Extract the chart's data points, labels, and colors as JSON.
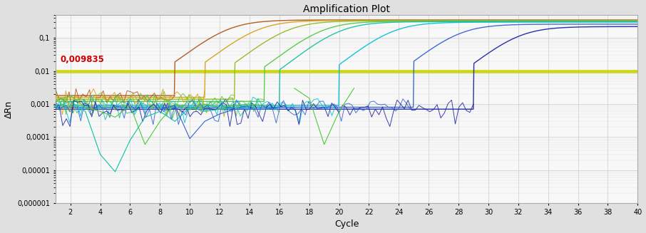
{
  "title": "Amplification Plot",
  "xlabel": "Cycle",
  "ylabel": "ΔRn",
  "threshold": 0.009835,
  "threshold_label": "0,009835",
  "threshold_color": "#c8d400",
  "threshold_lw": 3.5,
  "xlim": [
    1,
    40
  ],
  "ylim": [
    1e-06,
    0.5
  ],
  "xticks": [
    2,
    4,
    6,
    8,
    10,
    12,
    14,
    16,
    18,
    20,
    22,
    24,
    26,
    28,
    30,
    32,
    34,
    36,
    38,
    40
  ],
  "ytick_labels": [
    "0,1",
    "0,01",
    "0,001",
    "0,0001",
    "0,00001",
    "0,000001"
  ],
  "ytick_vals": [
    0.1,
    0.01,
    0.001,
    0.0001,
    1e-05,
    1e-06
  ],
  "bg_color": "#f8f8f8",
  "fig_bg": "#e0e0e0",
  "grid_color": "#d0d0d0",
  "curves": [
    {
      "color": "#b05010",
      "ct": 12.5,
      "plateau": 0.35,
      "baseline": 0.0018,
      "k": 0.85,
      "noise_end": 9
    },
    {
      "color": "#d4a010",
      "ct": 14.5,
      "plateau": 0.34,
      "baseline": 0.0016,
      "k": 0.85,
      "noise_end": 11
    },
    {
      "color": "#90b820",
      "ct": 16.5,
      "plateau": 0.33,
      "baseline": 0.0014,
      "k": 0.85,
      "noise_end": 13
    },
    {
      "color": "#50c840",
      "ct": 18.8,
      "plateau": 0.32,
      "baseline": 0.0012,
      "k": 0.85,
      "noise_end": 15
    },
    {
      "color": "#10c0a0",
      "ct": 20.0,
      "plateau": 0.31,
      "baseline": 0.0008,
      "k": 0.85,
      "noise_end": 16
    },
    {
      "color": "#00c0d8",
      "ct": 23.5,
      "plateau": 0.3,
      "baseline": 0.0009,
      "k": 0.85,
      "noise_end": 20
    },
    {
      "color": "#3060d0",
      "ct": 28.0,
      "plateau": 0.26,
      "baseline": 0.0008,
      "k": 0.85,
      "noise_end": 25
    },
    {
      "color": "#1820a0",
      "ct": 32.0,
      "plateau": 0.22,
      "baseline": 0.0007,
      "k": 0.85,
      "noise_end": 29
    }
  ],
  "noise_seeds": [
    1,
    2,
    3,
    4,
    5,
    6,
    7,
    8
  ],
  "teal_dip": {
    "x": [
      1,
      2,
      3,
      4,
      5,
      6,
      7,
      8,
      9,
      10,
      11,
      12,
      13,
      14,
      15,
      16
    ],
    "y": [
      0.0008,
      0.0012,
      0.0006,
      3e-05,
      9e-06,
      8e-05,
      0.0004,
      0.0006,
      0.0003,
      0.0008,
      0.0006,
      0.0007,
      0.0008,
      0.0007,
      0.0007,
      0.0008
    ]
  },
  "green_dip1": {
    "x": [
      1,
      2,
      3,
      4,
      5,
      6,
      7,
      8,
      9,
      10,
      11,
      12,
      13,
      14,
      15
    ],
    "y": [
      0.0012,
      0.0018,
      0.0008,
      0.0006,
      0.0004,
      0.0009,
      6e-05,
      0.0003,
      0.001,
      0.0007,
      0.001,
      0.0008,
      0.0009,
      0.001,
      0.0009
    ]
  },
  "green_dip2": {
    "x": [
      17,
      18,
      19,
      20,
      21
    ],
    "y": [
      0.003,
      0.0015,
      6e-05,
      0.0006,
      0.003
    ]
  },
  "blue_dip": {
    "x": [
      8,
      9,
      10,
      11,
      12,
      13,
      14,
      15,
      16,
      17
    ],
    "y": [
      0.0007,
      0.0009,
      9e-05,
      0.0003,
      0.0005,
      0.0007,
      0.0007,
      0.0007,
      0.0008,
      0.0008
    ]
  }
}
